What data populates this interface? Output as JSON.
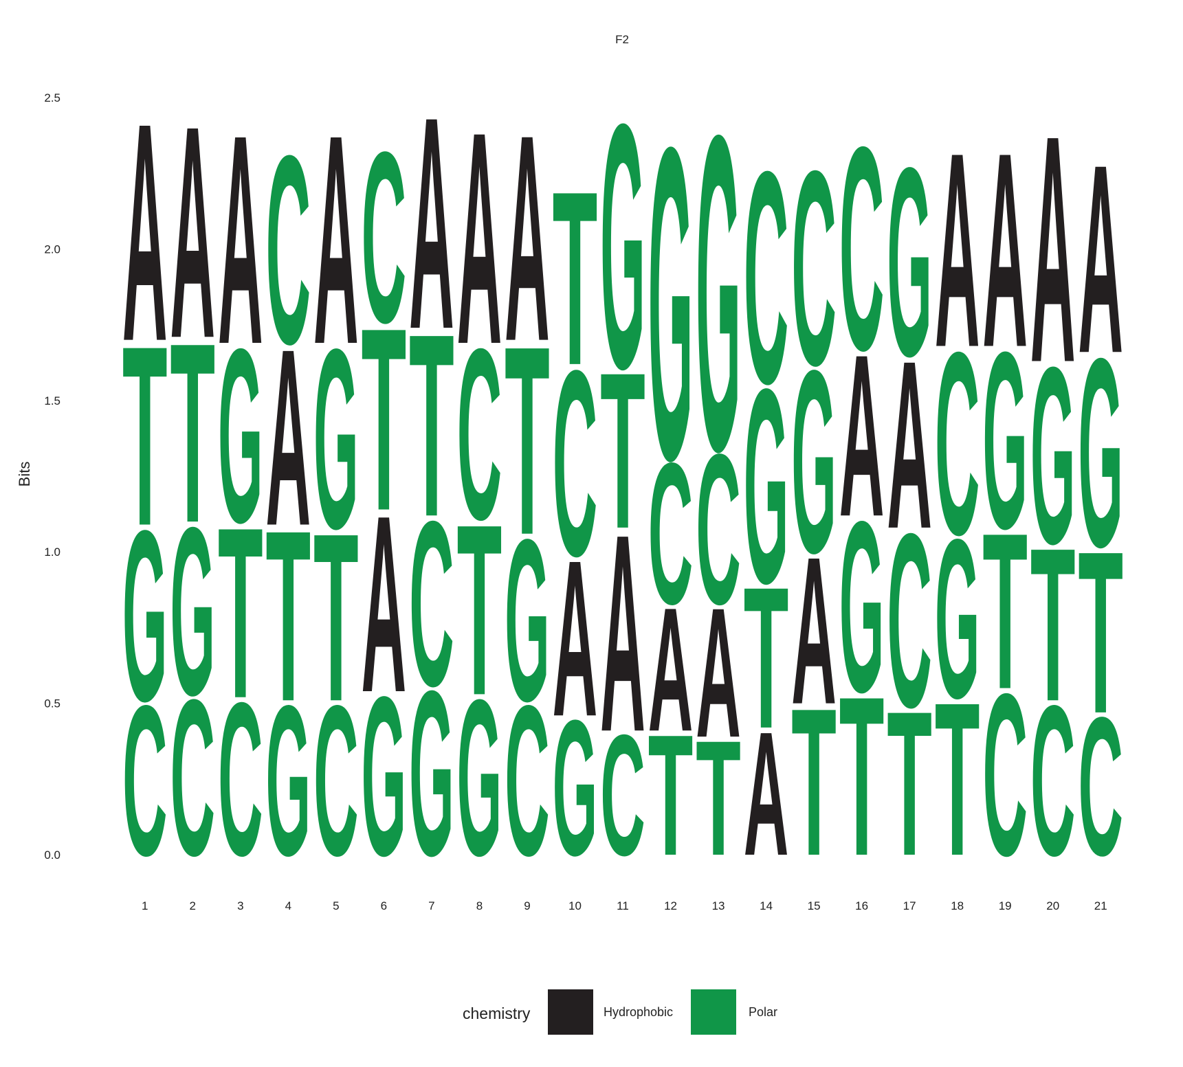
{
  "chart_data": {
    "type": "sequence-logo",
    "title": "F2",
    "ylabel": "Bits",
    "xlabel": "",
    "ylim": [
      0,
      2.5
    ],
    "y_ticks": [
      "0.0",
      "0.5",
      "1.0",
      "1.5",
      "2.0",
      "2.5"
    ],
    "positions": [
      "1",
      "2",
      "3",
      "4",
      "5",
      "6",
      "7",
      "8",
      "9",
      "10",
      "11",
      "12",
      "13",
      "14",
      "15",
      "16",
      "17",
      "18",
      "19",
      "20",
      "21"
    ],
    "colors": {
      "Hydrophobic": "#231f20",
      "Polar": "#109648"
    },
    "letter_groups": {
      "A": "Hydrophobic",
      "C": "Polar",
      "G": "Polar",
      "T": "Polar"
    },
    "stacks": [
      [
        {
          "letter": "C",
          "height": 0.51
        },
        {
          "letter": "G",
          "height": 0.58
        },
        {
          "letter": "T",
          "height": 0.61
        },
        {
          "letter": "A",
          "height": 0.74
        }
      ],
      [
        {
          "letter": "C",
          "height": 0.53
        },
        {
          "letter": "G",
          "height": 0.57
        },
        {
          "letter": "T",
          "height": 0.61
        },
        {
          "letter": "A",
          "height": 0.72
        }
      ],
      [
        {
          "letter": "C",
          "height": 0.52
        },
        {
          "letter": "T",
          "height": 0.58
        },
        {
          "letter": "G",
          "height": 0.59
        },
        {
          "letter": "A",
          "height": 0.71
        }
      ],
      [
        {
          "letter": "G",
          "height": 0.51
        },
        {
          "letter": "T",
          "height": 0.58
        },
        {
          "letter": "A",
          "height": 0.6
        },
        {
          "letter": "C",
          "height": 0.64
        }
      ],
      [
        {
          "letter": "C",
          "height": 0.51
        },
        {
          "letter": "T",
          "height": 0.57
        },
        {
          "letter": "G",
          "height": 0.61
        },
        {
          "letter": "A",
          "height": 0.71
        }
      ],
      [
        {
          "letter": "G",
          "height": 0.54
        },
        {
          "letter": "A",
          "height": 0.6
        },
        {
          "letter": "T",
          "height": 0.62
        },
        {
          "letter": "C",
          "height": 0.58
        }
      ],
      [
        {
          "letter": "G",
          "height": 0.56
        },
        {
          "letter": "C",
          "height": 0.56
        },
        {
          "letter": "T",
          "height": 0.62
        },
        {
          "letter": "A",
          "height": 0.72
        }
      ],
      [
        {
          "letter": "G",
          "height": 0.53
        },
        {
          "letter": "T",
          "height": 0.58
        },
        {
          "letter": "C",
          "height": 0.58
        },
        {
          "letter": "A",
          "height": 0.72
        }
      ],
      [
        {
          "letter": "C",
          "height": 0.51
        },
        {
          "letter": "G",
          "height": 0.55
        },
        {
          "letter": "T",
          "height": 0.64
        },
        {
          "letter": "A",
          "height": 0.7
        }
      ],
      [
        {
          "letter": "G",
          "height": 0.46
        },
        {
          "letter": "A",
          "height": 0.53
        },
        {
          "letter": "C",
          "height": 0.63
        },
        {
          "letter": "T",
          "height": 0.59
        }
      ],
      [
        {
          "letter": "C",
          "height": 0.41
        },
        {
          "letter": "A",
          "height": 0.67
        },
        {
          "letter": "T",
          "height": 0.53
        },
        {
          "letter": "G",
          "height": 0.83
        }
      ],
      [
        {
          "letter": "T",
          "height": 0.41
        },
        {
          "letter": "A",
          "height": 0.42
        },
        {
          "letter": "C",
          "height": 0.48
        },
        {
          "letter": "G",
          "height": 1.06
        }
      ],
      [
        {
          "letter": "T",
          "height": 0.39
        },
        {
          "letter": "A",
          "height": 0.44
        },
        {
          "letter": "C",
          "height": 0.51
        },
        {
          "letter": "G",
          "height": 1.07
        }
      ],
      [
        {
          "letter": "A",
          "height": 0.42
        },
        {
          "letter": "T",
          "height": 0.48
        },
        {
          "letter": "G",
          "height": 0.66
        },
        {
          "letter": "C",
          "height": 0.72
        }
      ],
      [
        {
          "letter": "T",
          "height": 0.5
        },
        {
          "letter": "A",
          "height": 0.5
        },
        {
          "letter": "G",
          "height": 0.62
        },
        {
          "letter": "C",
          "height": 0.66
        }
      ],
      [
        {
          "letter": "T",
          "height": 0.54
        },
        {
          "letter": "G",
          "height": 0.58
        },
        {
          "letter": "A",
          "height": 0.55
        },
        {
          "letter": "C",
          "height": 0.69
        }
      ],
      [
        {
          "letter": "T",
          "height": 0.49
        },
        {
          "letter": "C",
          "height": 0.59
        },
        {
          "letter": "A",
          "height": 0.57
        },
        {
          "letter": "G",
          "height": 0.64
        }
      ],
      [
        {
          "letter": "T",
          "height": 0.52
        },
        {
          "letter": "G",
          "height": 0.54
        },
        {
          "letter": "C",
          "height": 0.62
        },
        {
          "letter": "A",
          "height": 0.66
        }
      ],
      [
        {
          "letter": "C",
          "height": 0.55
        },
        {
          "letter": "T",
          "height": 0.53
        },
        {
          "letter": "G",
          "height": 0.6
        },
        {
          "letter": "A",
          "height": 0.66
        }
      ],
      [
        {
          "letter": "C",
          "height": 0.51
        },
        {
          "letter": "T",
          "height": 0.52
        },
        {
          "letter": "G",
          "height": 0.6
        },
        {
          "letter": "A",
          "height": 0.77
        }
      ],
      [
        {
          "letter": "C",
          "height": 0.47
        },
        {
          "letter": "T",
          "height": 0.55
        },
        {
          "letter": "G",
          "height": 0.64
        },
        {
          "letter": "A",
          "height": 0.64
        }
      ]
    ],
    "legend": {
      "title": "chemistry",
      "position": "bottom",
      "entries": [
        {
          "label": "Hydrophobic",
          "color": "#231f20"
        },
        {
          "label": "Polar",
          "color": "#109648"
        }
      ]
    },
    "grid": false
  }
}
